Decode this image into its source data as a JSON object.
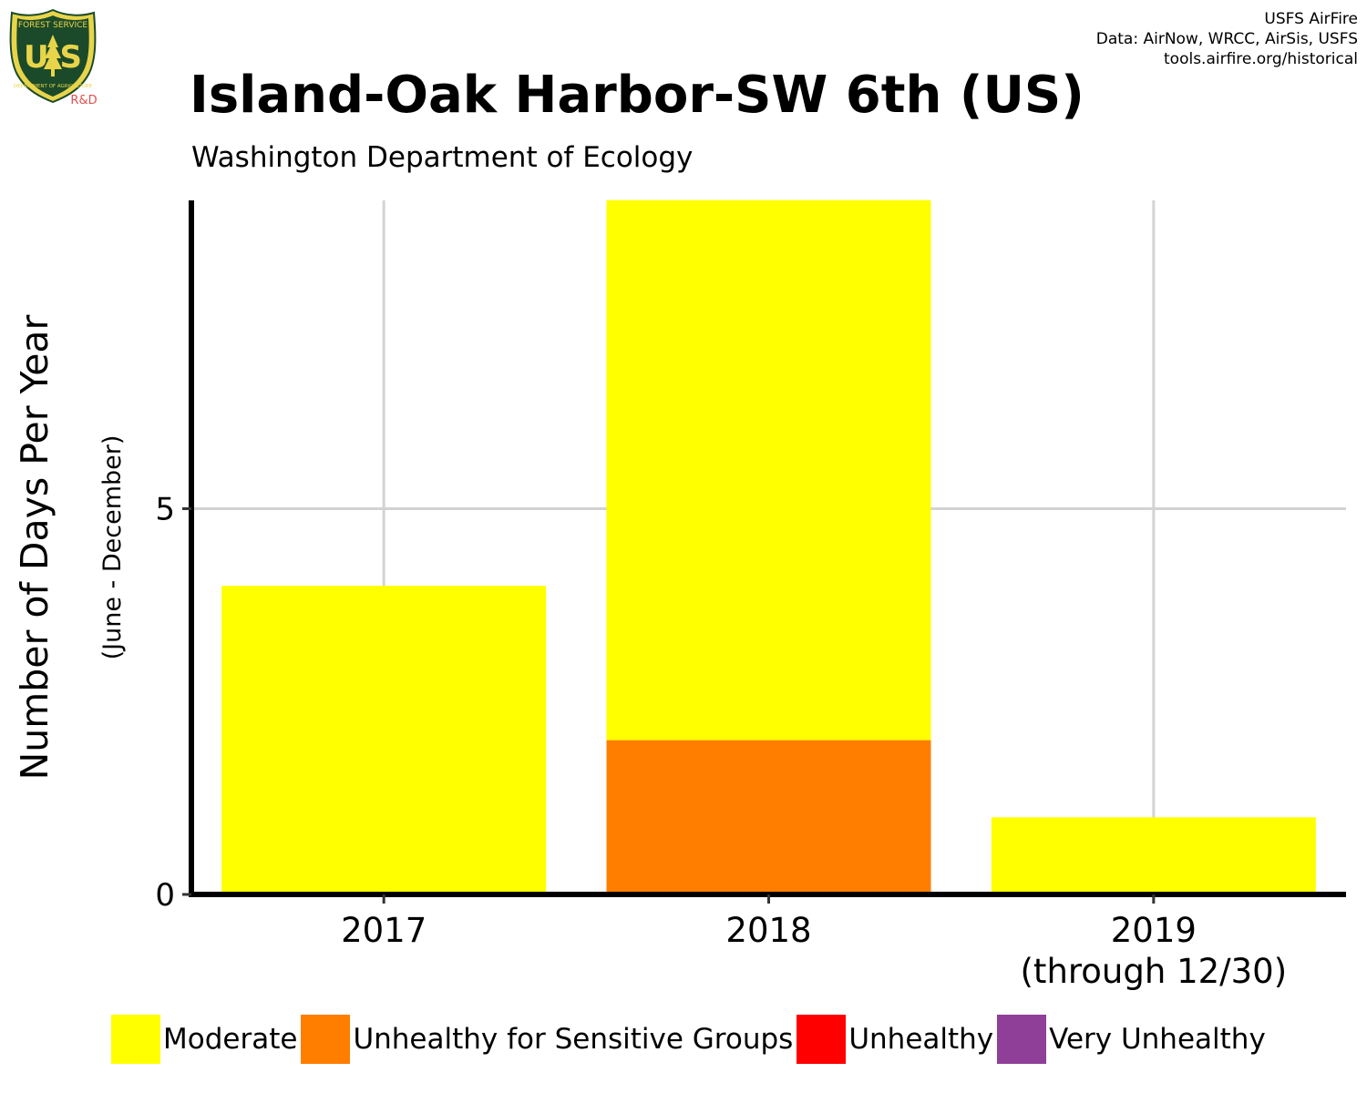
{
  "header": {
    "credits": [
      "USFS AirFire",
      "Data: AirNow, WRCC, AirSis, USFS",
      "tools.airfire.org/historical"
    ],
    "logo_text": {
      "top": "FOREST SERVICE",
      "emblem": "U S",
      "bottom": "DEPARTMENT OF AGRICULTURE",
      "tag": "R&D"
    }
  },
  "colors": {
    "Moderate": "#FFFF00",
    "Unhealthy for Sensitive Groups": "#FF7E00",
    "Unhealthy": "#FF0000",
    "Very Unhealthy": "#8F3F97",
    "grid": "#d3d3d3",
    "logo_green": "#1b4a2a",
    "logo_gold": "#e8d44a",
    "logo_rd": "#e05050"
  },
  "chart_data": {
    "type": "bar",
    "stacked": true,
    "title": "Island-Oak Harbor-SW 6th (US)",
    "subtitle": "Washington Department of Ecology",
    "ylabel": "Number of Days Per Year",
    "ylabel_sub": "(June - December)",
    "xlabel": "",
    "categories": [
      "2017",
      "2018",
      "2019"
    ],
    "category_sublabels": [
      "",
      "",
      "(through 12/30)"
    ],
    "series": [
      {
        "name": "Moderate",
        "values": [
          4,
          7,
          1
        ]
      },
      {
        "name": "Unhealthy for Sensitive Groups",
        "values": [
          0,
          2,
          0
        ]
      },
      {
        "name": "Unhealthy",
        "values": [
          0,
          0,
          0
        ]
      },
      {
        "name": "Very Unhealthy",
        "values": [
          0,
          0,
          0
        ]
      }
    ],
    "yticks": [
      0,
      5
    ],
    "ylim": [
      0,
      9
    ],
    "grid": true,
    "legend": "bottom"
  }
}
